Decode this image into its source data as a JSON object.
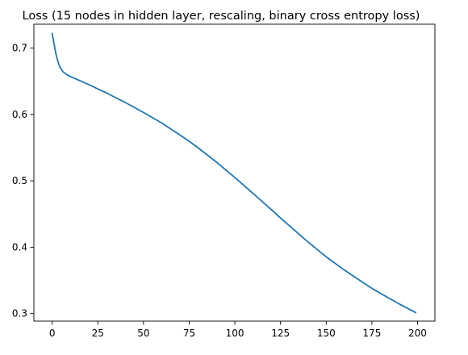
{
  "chart_data": {
    "type": "line",
    "title": "Loss (15 nodes in hidden layer, rescaling, binary cross entropy loss)",
    "xlabel": "",
    "ylabel": "",
    "xlim": [
      -10,
      209.5
    ],
    "ylim": [
      0.2887,
      0.7359
    ],
    "grid": false,
    "legend": "none",
    "xticks": [
      0,
      25,
      50,
      75,
      100,
      125,
      150,
      175,
      200
    ],
    "xtick_labels": [
      "0",
      "25",
      "50",
      "75",
      "100",
      "125",
      "150",
      "175",
      "200"
    ],
    "yticks": [
      0.3,
      0.4,
      0.5,
      0.6,
      0.7
    ],
    "ytick_labels": [
      "0.3",
      "0.4",
      "0.5",
      "0.6",
      "0.7"
    ],
    "series": [
      {
        "color": "#1f77b4",
        "x": [
          0,
          1,
          2,
          3,
          4,
          5,
          6,
          7,
          8,
          10,
          15,
          20,
          25,
          30,
          40,
          50,
          60,
          70,
          75,
          80,
          90,
          100,
          110,
          120,
          125,
          130,
          140,
          150,
          160,
          170,
          175,
          180,
          190,
          199
        ],
        "y": [
          0.722,
          0.707,
          0.692,
          0.681,
          0.673,
          0.668,
          0.664,
          0.662,
          0.66,
          0.657,
          0.651,
          0.645,
          0.6385,
          0.632,
          0.618,
          0.603,
          0.587,
          0.569,
          0.5595,
          0.5495,
          0.528,
          0.505,
          0.481,
          0.4565,
          0.444,
          0.432,
          0.408,
          0.3855,
          0.3655,
          0.347,
          0.338,
          0.33,
          0.3145,
          0.3015
        ]
      }
    ]
  }
}
